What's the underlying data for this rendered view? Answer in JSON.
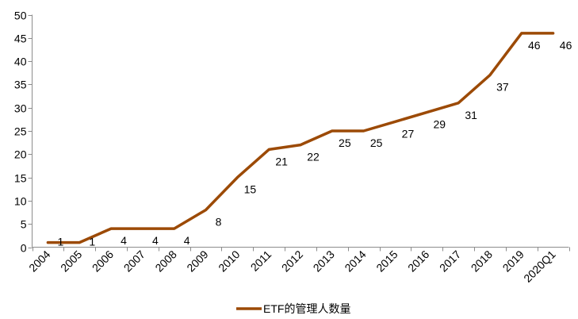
{
  "chart_data": {
    "type": "line",
    "categories": [
      "2004",
      "2005",
      "2006",
      "2007",
      "2008",
      "2009",
      "2010",
      "2011",
      "2012",
      "2013",
      "2014",
      "2015",
      "2016",
      "2017",
      "2018",
      "2019",
      "2020Q1"
    ],
    "series": [
      {
        "name": "ETF的管理人数量",
        "values": [
          1,
          1,
          4,
          4,
          4,
          8,
          15,
          21,
          22,
          25,
          25,
          27,
          29,
          31,
          37,
          46,
          46
        ],
        "color": "#9c4a06"
      }
    ],
    "data_labels": [
      "1",
      "1",
      "4",
      "4",
      "4",
      "8",
      "15",
      "21",
      "22",
      "25",
      "25",
      "27",
      "29",
      "31",
      "37",
      "46",
      "46"
    ],
    "ylim": [
      0,
      50
    ],
    "y_ticks": [
      "0",
      "5",
      "10",
      "15",
      "20",
      "25",
      "30",
      "35",
      "40",
      "45",
      "50"
    ],
    "grid": false,
    "legend_position": "bottom",
    "title": "",
    "xlabel": "",
    "ylabel": ""
  }
}
